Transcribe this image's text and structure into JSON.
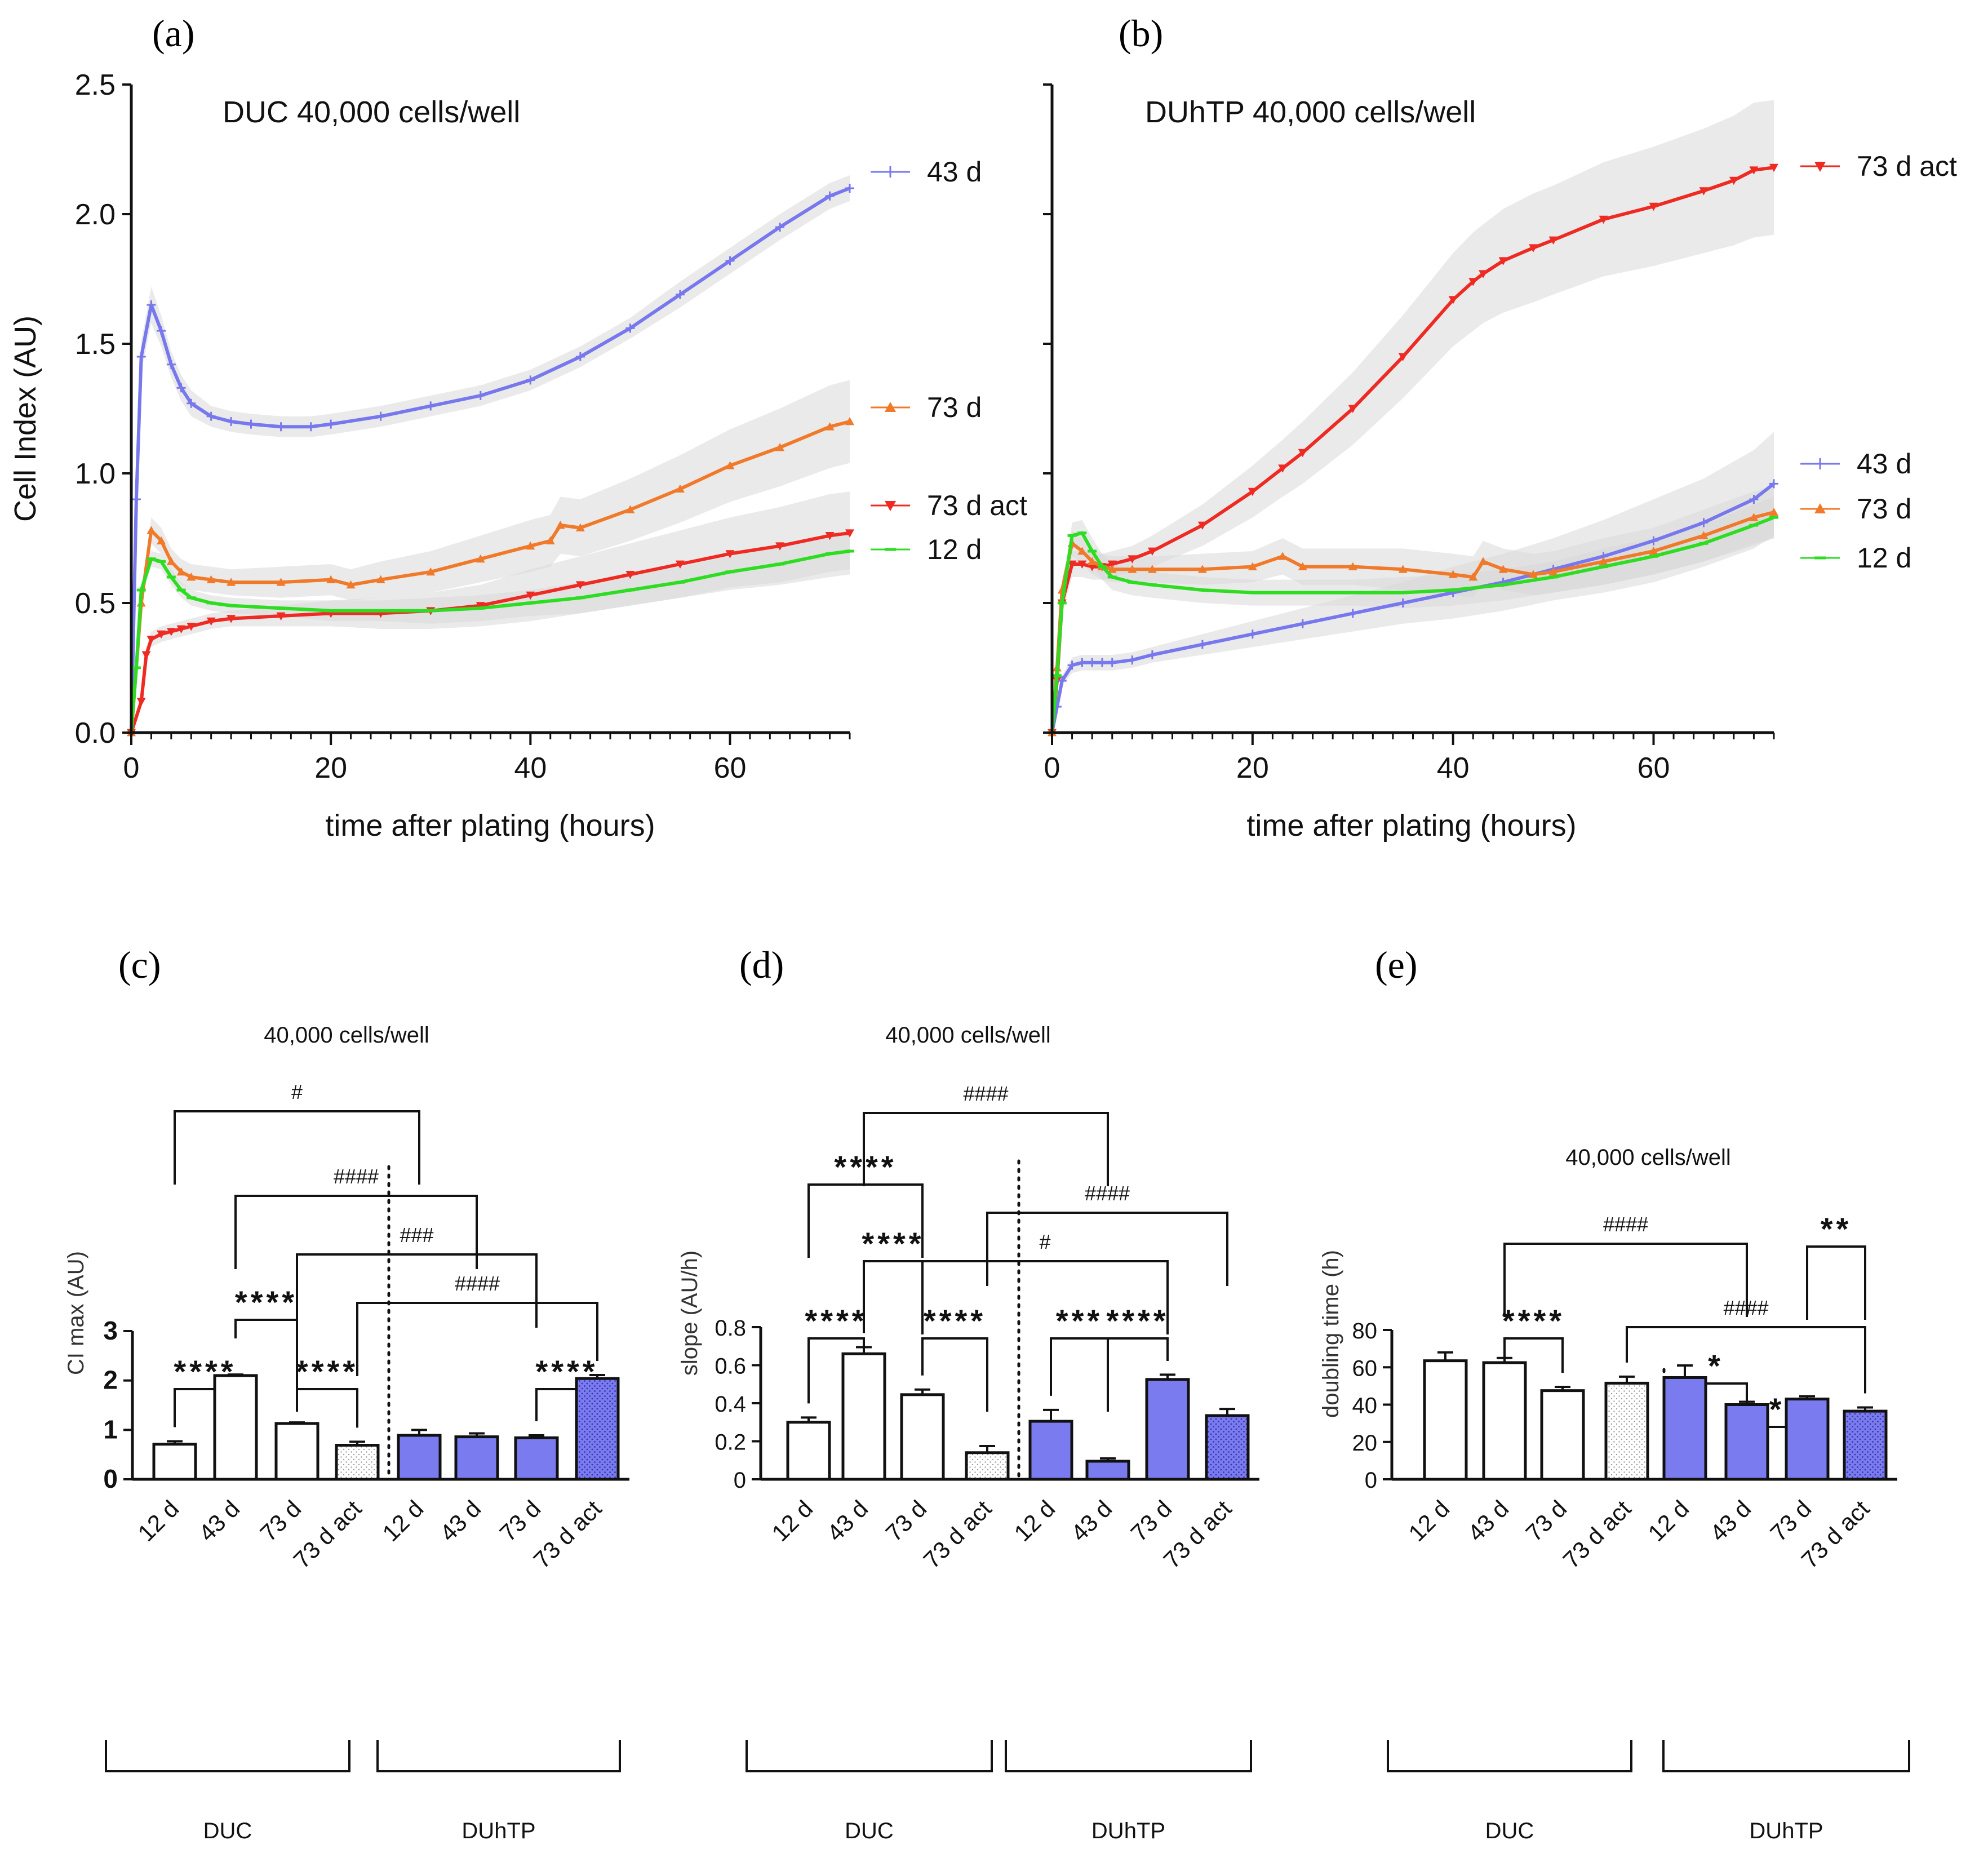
{
  "figure": {
    "panel_labels": [
      "(a)",
      "(b)",
      "(c)",
      "(d)",
      "(e)"
    ]
  },
  "colors": {
    "blue": "#7777ee",
    "orange": "#f07a2a",
    "red": "#ee2a22",
    "green": "#2edd22",
    "bar_blue": "#7b7bf0",
    "error_band": "#d9d9d9",
    "axis": "#111111"
  },
  "chart_data": [
    {
      "id": "a",
      "type": "line",
      "title": "DUC 40,000 cells/well",
      "xlabel": "time after plating (hours)",
      "ylabel": "Cell Index (AU)",
      "xlim": [
        0,
        72
      ],
      "ylim": [
        0,
        2.5
      ],
      "xticks": [
        0,
        20,
        40,
        60
      ],
      "yticks": [
        0.0,
        0.5,
        1.0,
        1.5,
        2.0,
        2.5
      ],
      "ytick_labels": [
        "0.0",
        "0.5",
        "1.0",
        "1.5",
        "2.0",
        "2.5"
      ],
      "series": [
        {
          "name": "43 d",
          "color": "blue",
          "marker": "plus",
          "x": [
            0,
            0.5,
            1,
            2,
            3,
            4,
            5,
            6,
            8,
            10,
            12,
            15,
            18,
            20,
            25,
            30,
            35,
            40,
            45,
            50,
            55,
            60,
            65,
            70,
            72
          ],
          "y": [
            0,
            0.9,
            1.45,
            1.65,
            1.55,
            1.42,
            1.33,
            1.27,
            1.22,
            1.2,
            1.19,
            1.18,
            1.18,
            1.19,
            1.22,
            1.26,
            1.3,
            1.36,
            1.45,
            1.56,
            1.69,
            1.82,
            1.95,
            2.07,
            2.1
          ],
          "err": [
            0,
            0.05,
            0.06,
            0.07,
            0.06,
            0.05,
            0.05,
            0.05,
            0.04,
            0.04,
            0.04,
            0.04,
            0.04,
            0.04,
            0.04,
            0.04,
            0.04,
            0.04,
            0.04,
            0.04,
            0.05,
            0.05,
            0.05,
            0.05,
            0.05
          ]
        },
        {
          "name": "73 d",
          "color": "orange",
          "marker": "triangle-up",
          "x": [
            0,
            1,
            2,
            3,
            4,
            5,
            6,
            8,
            10,
            15,
            20,
            22,
            25,
            30,
            35,
            40,
            42,
            43,
            45,
            50,
            55,
            60,
            65,
            70,
            72
          ],
          "y": [
            0,
            0.5,
            0.78,
            0.74,
            0.66,
            0.62,
            0.6,
            0.59,
            0.58,
            0.58,
            0.59,
            0.57,
            0.59,
            0.62,
            0.67,
            0.72,
            0.74,
            0.8,
            0.79,
            0.86,
            0.94,
            1.03,
            1.1,
            1.18,
            1.2
          ],
          "err": [
            0,
            0.03,
            0.05,
            0.05,
            0.05,
            0.05,
            0.05,
            0.05,
            0.05,
            0.06,
            0.06,
            0.06,
            0.07,
            0.08,
            0.09,
            0.1,
            0.1,
            0.11,
            0.11,
            0.12,
            0.13,
            0.14,
            0.15,
            0.16,
            0.16
          ]
        },
        {
          "name": "73 d act",
          "color": "red",
          "marker": "triangle-down",
          "x": [
            0,
            1,
            1.5,
            2,
            3,
            4,
            5,
            6,
            8,
            10,
            15,
            20,
            25,
            30,
            35,
            40,
            45,
            50,
            55,
            60,
            65,
            70,
            72
          ],
          "y": [
            0,
            0.12,
            0.3,
            0.36,
            0.38,
            0.39,
            0.4,
            0.41,
            0.43,
            0.44,
            0.45,
            0.46,
            0.46,
            0.47,
            0.49,
            0.53,
            0.57,
            0.61,
            0.65,
            0.69,
            0.72,
            0.76,
            0.77
          ],
          "err": [
            0,
            0.02,
            0.03,
            0.03,
            0.03,
            0.03,
            0.03,
            0.03,
            0.03,
            0.03,
            0.04,
            0.05,
            0.06,
            0.07,
            0.08,
            0.1,
            0.11,
            0.12,
            0.13,
            0.14,
            0.15,
            0.16,
            0.16
          ]
        },
        {
          "name": "12 d",
          "color": "green",
          "marker": "minus",
          "x": [
            0,
            0.5,
            1,
            2,
            3,
            4,
            5,
            6,
            8,
            10,
            15,
            20,
            25,
            30,
            35,
            40,
            45,
            50,
            55,
            60,
            65,
            70,
            72
          ],
          "y": [
            0,
            0.25,
            0.55,
            0.67,
            0.66,
            0.6,
            0.55,
            0.52,
            0.5,
            0.49,
            0.48,
            0.47,
            0.47,
            0.47,
            0.48,
            0.5,
            0.52,
            0.55,
            0.58,
            0.62,
            0.65,
            0.69,
            0.7
          ],
          "err": [
            0,
            0.02,
            0.03,
            0.03,
            0.03,
            0.03,
            0.03,
            0.03,
            0.03,
            0.03,
            0.03,
            0.04,
            0.04,
            0.05,
            0.05,
            0.05,
            0.06,
            0.06,
            0.06,
            0.06,
            0.07,
            0.07,
            0.07
          ]
        }
      ]
    },
    {
      "id": "b",
      "type": "line",
      "title": "DUhTP 40,000 cells/well",
      "xlabel": "time after plating (hours)",
      "ylabel": "",
      "xlim": [
        0,
        72
      ],
      "ylim": [
        0,
        2.5
      ],
      "xticks": [
        0,
        20,
        40,
        60
      ],
      "yticks": [
        0.0,
        0.5,
        1.0,
        1.5,
        2.0,
        2.5
      ],
      "series": [
        {
          "name": "73 d act",
          "color": "red",
          "marker": "triangle-down",
          "x": [
            0,
            0.5,
            1,
            2,
            3,
            4,
            5,
            6,
            8,
            10,
            15,
            20,
            23,
            25,
            30,
            35,
            40,
            42,
            43,
            45,
            48,
            50,
            55,
            60,
            65,
            68,
            70,
            72
          ],
          "y": [
            0,
            0.2,
            0.5,
            0.65,
            0.65,
            0.64,
            0.64,
            0.65,
            0.67,
            0.7,
            0.8,
            0.93,
            1.02,
            1.08,
            1.25,
            1.45,
            1.67,
            1.74,
            1.77,
            1.82,
            1.87,
            1.9,
            1.98,
            2.03,
            2.09,
            2.13,
            2.17,
            2.18
          ],
          "err": [
            0,
            0.03,
            0.04,
            0.05,
            0.05,
            0.05,
            0.05,
            0.05,
            0.05,
            0.06,
            0.08,
            0.1,
            0.11,
            0.12,
            0.14,
            0.16,
            0.18,
            0.19,
            0.19,
            0.2,
            0.21,
            0.21,
            0.22,
            0.23,
            0.24,
            0.25,
            0.26,
            0.26
          ]
        },
        {
          "name": "43 d",
          "color": "blue",
          "marker": "plus",
          "x": [
            0,
            0.5,
            1,
            2,
            3,
            4,
            5,
            6,
            8,
            10,
            15,
            20,
            25,
            30,
            35,
            40,
            45,
            50,
            55,
            60,
            65,
            70,
            72
          ],
          "y": [
            0,
            0.1,
            0.2,
            0.26,
            0.27,
            0.27,
            0.27,
            0.27,
            0.28,
            0.3,
            0.34,
            0.38,
            0.42,
            0.46,
            0.5,
            0.54,
            0.58,
            0.63,
            0.68,
            0.74,
            0.81,
            0.9,
            0.96
          ],
          "err": [
            0,
            0.02,
            0.02,
            0.03,
            0.03,
            0.03,
            0.03,
            0.03,
            0.03,
            0.03,
            0.04,
            0.05,
            0.06,
            0.07,
            0.08,
            0.1,
            0.11,
            0.12,
            0.14,
            0.16,
            0.17,
            0.19,
            0.2
          ]
        },
        {
          "name": "73 d",
          "color": "orange",
          "marker": "triangle-up",
          "x": [
            0,
            0.5,
            1,
            2,
            3,
            4,
            5,
            6,
            8,
            10,
            15,
            20,
            23,
            25,
            30,
            35,
            40,
            42,
            43,
            45,
            48,
            50,
            55,
            60,
            65,
            70,
            72
          ],
          "y": [
            0,
            0.25,
            0.55,
            0.73,
            0.7,
            0.66,
            0.64,
            0.63,
            0.63,
            0.63,
            0.63,
            0.64,
            0.68,
            0.64,
            0.64,
            0.63,
            0.61,
            0.6,
            0.66,
            0.63,
            0.61,
            0.62,
            0.66,
            0.7,
            0.76,
            0.83,
            0.85
          ],
          "err": [
            0,
            0.03,
            0.04,
            0.05,
            0.05,
            0.05,
            0.05,
            0.05,
            0.05,
            0.05,
            0.06,
            0.06,
            0.07,
            0.07,
            0.07,
            0.08,
            0.08,
            0.08,
            0.08,
            0.08,
            0.08,
            0.08,
            0.09,
            0.09,
            0.1,
            0.1,
            0.1
          ]
        },
        {
          "name": "12 d",
          "color": "green",
          "marker": "minus",
          "x": [
            0,
            0.5,
            1,
            2,
            3,
            4,
            5,
            6,
            8,
            10,
            15,
            20,
            25,
            30,
            35,
            40,
            45,
            50,
            55,
            60,
            65,
            70,
            72
          ],
          "y": [
            0,
            0.22,
            0.5,
            0.76,
            0.77,
            0.7,
            0.64,
            0.6,
            0.58,
            0.57,
            0.55,
            0.54,
            0.54,
            0.54,
            0.54,
            0.55,
            0.57,
            0.6,
            0.64,
            0.68,
            0.73,
            0.8,
            0.83
          ],
          "err": [
            0,
            0.03,
            0.04,
            0.05,
            0.05,
            0.05,
            0.05,
            0.05,
            0.05,
            0.05,
            0.05,
            0.05,
            0.05,
            0.05,
            0.06,
            0.06,
            0.06,
            0.06,
            0.07,
            0.07,
            0.07,
            0.08,
            0.08
          ]
        }
      ]
    },
    {
      "id": "c",
      "type": "bar",
      "title": "40,000 cells/well",
      "ylabel": "CI max (AU)",
      "ylim": [
        0,
        3
      ],
      "yticks": [
        0,
        1,
        2,
        3
      ],
      "categories": [
        "12 d",
        "43 d",
        "73 d",
        "73 d act",
        "12 d",
        "43 d",
        "73 d",
        "73 d act"
      ],
      "groups": [
        "DUC",
        "DUhTP"
      ],
      "values": [
        0.71,
        2.1,
        1.13,
        0.69,
        0.89,
        0.86,
        0.84,
        2.04
      ],
      "errors": [
        0.06,
        0.02,
        0.02,
        0.07,
        0.11,
        0.07,
        0.05,
        0.07
      ],
      "fills": [
        "white",
        "white",
        "white",
        "dotted",
        "blue",
        "blue",
        "blue",
        "dotted-blue"
      ],
      "comparisons": [
        {
          "from": 0,
          "to": 1,
          "label": "****",
          "type": "star"
        },
        {
          "from": 2,
          "to": 3,
          "label": "****",
          "type": "star"
        },
        {
          "from": 6,
          "to": 7,
          "label": "****",
          "type": "star"
        },
        {
          "from": 1,
          "to": 2,
          "label": "****",
          "type": "star"
        },
        {
          "from": 3,
          "to": 7,
          "label": "####",
          "type": "hash"
        },
        {
          "from": 2,
          "to": 6,
          "label": "###",
          "type": "hash"
        },
        {
          "from": 1,
          "to": 5,
          "label": "####",
          "type": "hash"
        },
        {
          "from": 0,
          "to": 4,
          "label": "#",
          "type": "hash"
        }
      ]
    },
    {
      "id": "d",
      "type": "bar",
      "title": "40,000 cells/well",
      "ylabel": "slope (AU/h)",
      "ylim": [
        0,
        0.8
      ],
      "yticks": [
        0.0,
        0.2,
        0.4,
        0.6,
        0.8
      ],
      "categories": [
        "12 d",
        "43 d",
        "73 d",
        "73 d act",
        "12 d",
        "43 d",
        "73 d",
        "73 d act"
      ],
      "groups": [
        "DUC",
        "DUhTP"
      ],
      "values": [
        0.3,
        0.66,
        0.445,
        0.14,
        0.305,
        0.095,
        0.525,
        0.335
      ],
      "errors": [
        0.025,
        0.035,
        0.027,
        0.035,
        0.06,
        0.015,
        0.025,
        0.035
      ],
      "fills": [
        "white",
        "white",
        "white",
        "dotted",
        "blue",
        "blue",
        "blue",
        "dotted-blue"
      ],
      "comparisons": [
        {
          "from": 0,
          "to": 1,
          "label": "****",
          "type": "star"
        },
        {
          "from": 2,
          "to": 3,
          "label": "****",
          "type": "star"
        },
        {
          "from": 4,
          "to": 5,
          "label": "***",
          "type": "star"
        },
        {
          "from": 5,
          "to": 6,
          "label": "****",
          "type": "star"
        },
        {
          "from": 2,
          "to": 6,
          "label": "#",
          "type": "hash"
        },
        {
          "from": 1,
          "to": 2,
          "label": "****",
          "type": "star"
        },
        {
          "from": 3,
          "to": 7,
          "label": "####",
          "type": "hash"
        },
        {
          "from": 0,
          "to": 2,
          "label": "****",
          "type": "star"
        },
        {
          "from": 1,
          "to": 5,
          "label": "####",
          "type": "hash"
        }
      ]
    },
    {
      "id": "e",
      "type": "bar",
      "title": "40,000 cells/well",
      "ylabel": "doubling time (h)",
      "ylim": [
        0,
        80
      ],
      "yticks": [
        0,
        20,
        40,
        60,
        80
      ],
      "categories": [
        "12 d",
        "43 d",
        "73 d",
        "73 d act",
        "12 d",
        "43 d",
        "73 d",
        "73 d act"
      ],
      "groups": [
        "DUC",
        "DUhTP"
      ],
      "values": [
        63.5,
        62.5,
        47.5,
        51.5,
        54.5,
        40,
        43,
        36.5
      ],
      "errors": [
        4.5,
        2.5,
        2,
        3.5,
        6.5,
        1.5,
        1.5,
        2
      ],
      "fills": [
        "white",
        "white",
        "white",
        "dotted",
        "blue",
        "blue",
        "blue",
        "dotted-blue"
      ],
      "comparisons": [
        {
          "from": 4,
          "to": 5,
          "label": "*",
          "type": "star"
        },
        {
          "from": 5,
          "to": 6,
          "label": "*",
          "type": "star"
        },
        {
          "from": 1,
          "to": 2,
          "label": "****",
          "type": "star"
        },
        {
          "from": 3,
          "to": 7,
          "label": "####",
          "type": "hash"
        },
        {
          "from": 1,
          "to": 5,
          "label": "####",
          "type": "hash"
        },
        {
          "from": 6,
          "to": 7,
          "label": "**",
          "type": "star"
        }
      ]
    }
  ]
}
